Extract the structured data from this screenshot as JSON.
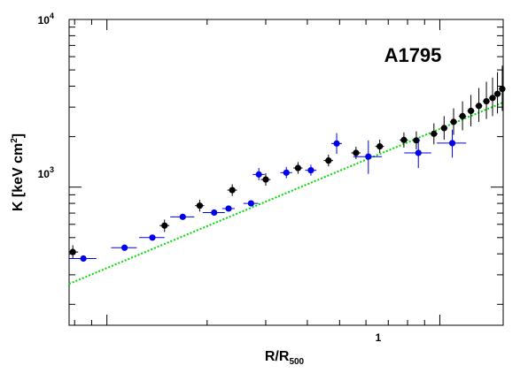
{
  "chart_data": {
    "type": "scatter",
    "title": "A1795",
    "xlabel": "R/R",
    "xlabel_sub": "500",
    "ylabel": "K [keV cm",
    "ylabel_sup": "2",
    "ylabel_close": "]",
    "x_scale": "log",
    "y_scale": "log",
    "xlim": [
      0.077,
      1.55
    ],
    "ylim": [
      150,
      10000
    ],
    "x_tick_labels": [
      {
        "value": 1,
        "label": "1"
      }
    ],
    "y_tick_labels": [
      {
        "value": 1000,
        "base": "10",
        "exp": "3"
      },
      {
        "value": 10000,
        "base": "10",
        "exp": "4"
      }
    ],
    "grid": false,
    "legend": "none",
    "colors": {
      "series_black": "#000000",
      "series_blue": "#0000ee",
      "model_line": "#00dd00"
    },
    "series": [
      {
        "color": "black",
        "marker": "circle",
        "points": [
          {
            "x": 0.079,
            "y": 410,
            "xerr": 0.003,
            "ylo": 375,
            "yhi": 450
          },
          {
            "x": 0.149,
            "y": 590,
            "xerr": 0.005,
            "ylo": 540,
            "yhi": 640
          },
          {
            "x": 0.19,
            "y": 775,
            "xerr": 0.006,
            "ylo": 715,
            "yhi": 840
          },
          {
            "x": 0.238,
            "y": 960,
            "xerr": 0.008,
            "ylo": 885,
            "yhi": 1040
          },
          {
            "x": 0.3,
            "y": 1110,
            "xerr": 0.01,
            "ylo": 1020,
            "yhi": 1210
          },
          {
            "x": 0.375,
            "y": 1300,
            "xerr": 0.012,
            "ylo": 1200,
            "yhi": 1410
          },
          {
            "x": 0.463,
            "y": 1440,
            "xerr": 0.015,
            "ylo": 1330,
            "yhi": 1560
          },
          {
            "x": 0.56,
            "y": 1600,
            "xerr": 0.018,
            "ylo": 1470,
            "yhi": 1740
          },
          {
            "x": 0.66,
            "y": 1750,
            "xerr": 0.02,
            "ylo": 1600,
            "yhi": 1920
          },
          {
            "x": 0.78,
            "y": 1910,
            "xerr": 0.022,
            "ylo": 1720,
            "yhi": 2120
          },
          {
            "x": 0.85,
            "y": 1900,
            "xerr": 0.022,
            "ylo": 1680,
            "yhi": 2150
          },
          {
            "x": 0.96,
            "y": 2080,
            "xerr": 0.025,
            "ylo": 1800,
            "yhi": 2400
          },
          {
            "x": 1.03,
            "y": 2250,
            "xerr": 0.025,
            "ylo": 1920,
            "yhi": 2650
          },
          {
            "x": 1.1,
            "y": 2450,
            "xerr": 0.028,
            "ylo": 2050,
            "yhi": 2950
          },
          {
            "x": 1.17,
            "y": 2650,
            "xerr": 0.03,
            "ylo": 2180,
            "yhi": 3250
          },
          {
            "x": 1.24,
            "y": 2850,
            "xerr": 0.03,
            "ylo": 2300,
            "yhi": 3550
          },
          {
            "x": 1.31,
            "y": 3050,
            "xerr": 0.032,
            "ylo": 2450,
            "yhi": 3900
          },
          {
            "x": 1.38,
            "y": 3250,
            "xerr": 0.032,
            "ylo": 2550,
            "yhi": 4250
          },
          {
            "x": 1.44,
            "y": 3400,
            "xerr": 0.034,
            "ylo": 2650,
            "yhi": 4500
          },
          {
            "x": 1.49,
            "y": 3600,
            "xerr": 0.034,
            "ylo": 2750,
            "yhi": 4850
          },
          {
            "x": 1.54,
            "y": 3850,
            "xerr": 0.035,
            "ylo": 2850,
            "yhi": 5300
          }
        ]
      },
      {
        "color": "blue",
        "marker": "circle",
        "points": [
          {
            "x": 0.085,
            "y": 375,
            "xerr": 0.008
          },
          {
            "x": 0.113,
            "y": 435,
            "xerr": 0.01
          },
          {
            "x": 0.137,
            "y": 500,
            "xerr": 0.012
          },
          {
            "x": 0.169,
            "y": 665,
            "xerr": 0.014
          },
          {
            "x": 0.21,
            "y": 705,
            "xerr": 0.016
          },
          {
            "x": 0.232,
            "y": 745,
            "xerr": 0.01
          },
          {
            "x": 0.271,
            "y": 800,
            "xerr": 0.014
          },
          {
            "x": 0.286,
            "y": 1190,
            "xerr": 0.012,
            "ylo": 1100,
            "yhi": 1300
          },
          {
            "x": 0.346,
            "y": 1220,
            "xerr": 0.014,
            "ylo": 1130,
            "yhi": 1320
          },
          {
            "x": 0.41,
            "y": 1260,
            "xerr": 0.016,
            "ylo": 1170,
            "yhi": 1360
          },
          {
            "x": 0.49,
            "y": 1820,
            "xerr": 0.018,
            "ylo": 1580,
            "yhi": 2100
          },
          {
            "x": 0.61,
            "y": 1520,
            "xerr": 0.06,
            "ylo": 1200,
            "yhi": 1900
          },
          {
            "x": 0.862,
            "y": 1600,
            "xerr": 0.08,
            "ylo": 1300,
            "yhi": 1950
          },
          {
            "x": 1.09,
            "y": 1830,
            "xerr": 0.11,
            "ylo": 1500,
            "yhi": 2200
          }
        ]
      }
    ],
    "model_line": {
      "style": "dotted",
      "color": "green",
      "points": [
        {
          "x": 0.077,
          "y": 265
        },
        {
          "x": 1.55,
          "y": 3200
        }
      ]
    }
  }
}
